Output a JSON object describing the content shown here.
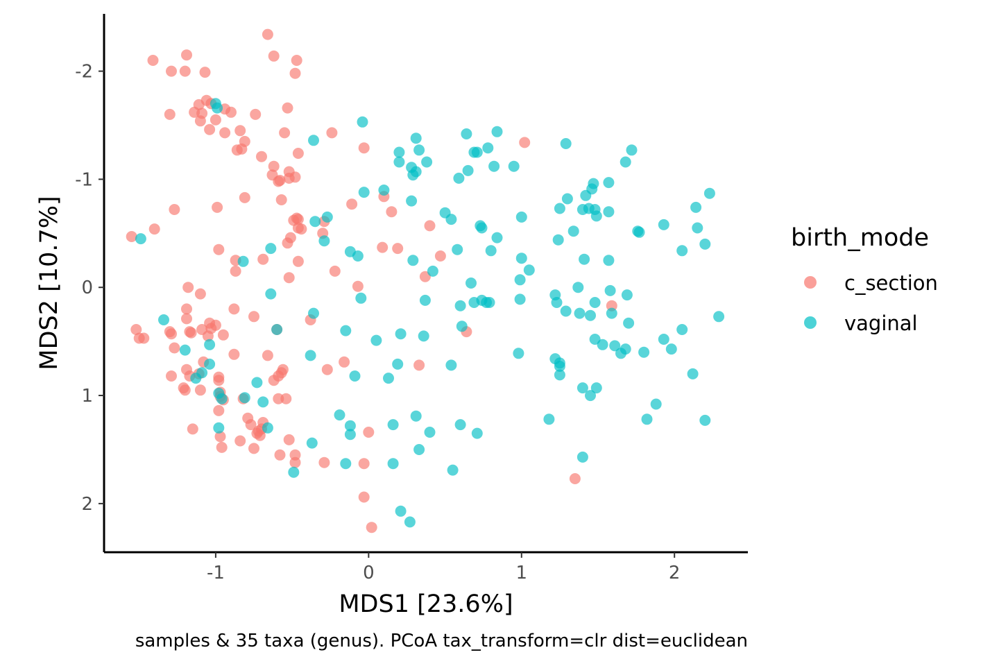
{
  "chart_data": {
    "type": "scatter",
    "xlabel": "MDS1 [23.6%]",
    "ylabel": "MDS2 [10.7%]",
    "caption": "samples & 35 taxa (genus). PCoA tax_transform=clr dist=euclidean",
    "xlim": [
      -1.73,
      2.48
    ],
    "ylim": [
      -2.53,
      2.45
    ],
    "y_reversed": true,
    "x_ticks": [
      {
        "value": -1,
        "label": "-1"
      },
      {
        "value": 0,
        "label": "0"
      },
      {
        "value": 1,
        "label": "1"
      },
      {
        "value": 2,
        "label": "2"
      }
    ],
    "y_ticks": [
      {
        "value": -2,
        "label": "-2"
      },
      {
        "value": -1,
        "label": "-1"
      },
      {
        "value": 0,
        "label": "0"
      },
      {
        "value": 1,
        "label": "1"
      },
      {
        "value": 2,
        "label": "2"
      }
    ],
    "grid": false,
    "legend": {
      "title": "birth_mode",
      "position": "right"
    },
    "series": [
      {
        "name": "c_section",
        "color": "#F8766D",
        "points": [
          [
            -0.66,
            -2.34
          ],
          [
            -1.19,
            -2.15
          ],
          [
            -0.62,
            -2.14
          ],
          [
            -0.47,
            -2.1
          ],
          [
            -1.41,
            -2.1
          ],
          [
            -1.29,
            -2.0
          ],
          [
            -1.2,
            -2.0
          ],
          [
            -1.07,
            -1.99
          ],
          [
            -0.48,
            -1.98
          ],
          [
            -1.06,
            -1.73
          ],
          [
            -1.03,
            -1.7
          ],
          [
            -1.11,
            -1.69
          ],
          [
            -0.94,
            -1.65
          ],
          [
            -0.53,
            -1.66
          ],
          [
            -0.9,
            -1.62
          ],
          [
            -1.14,
            -1.62
          ],
          [
            -1.09,
            -1.61
          ],
          [
            -1.3,
            -1.6
          ],
          [
            -0.74,
            -1.6
          ],
          [
            -1.1,
            -1.54
          ],
          [
            -1.0,
            -1.55
          ],
          [
            -1.04,
            -1.46
          ],
          [
            -0.84,
            -1.45
          ],
          [
            -0.94,
            -1.43
          ],
          [
            -0.55,
            -1.43
          ],
          [
            -0.24,
            -1.43
          ],
          [
            -0.81,
            -1.35
          ],
          [
            -0.83,
            -1.28
          ],
          [
            -0.86,
            -1.27
          ],
          [
            -0.46,
            -1.24
          ],
          [
            -0.7,
            -1.21
          ],
          [
            -0.62,
            -1.12
          ],
          [
            -0.52,
            -1.07
          ],
          [
            -0.63,
            -1.04
          ],
          [
            -0.48,
            -1.02
          ],
          [
            -0.52,
            -1.01
          ],
          [
            -0.58,
            -0.99
          ],
          [
            -0.59,
            -0.98
          ],
          [
            -0.03,
            -1.29
          ],
          [
            1.02,
            -1.34
          ],
          [
            -0.57,
            -0.81
          ],
          [
            -0.81,
            -0.83
          ],
          [
            -1.27,
            -0.72
          ],
          [
            -0.99,
            -0.74
          ],
          [
            -0.11,
            -0.77
          ],
          [
            0.1,
            -0.84
          ],
          [
            0.15,
            -0.7
          ],
          [
            -0.47,
            -0.64
          ],
          [
            -0.46,
            -0.63
          ],
          [
            -0.49,
            -0.62
          ],
          [
            -0.46,
            -0.55
          ],
          [
            -0.44,
            -0.54
          ],
          [
            -0.51,
            -0.46
          ],
          [
            -1.4,
            -0.54
          ],
          [
            -1.55,
            -0.47
          ],
          [
            -0.3,
            -0.5
          ],
          [
            -0.29,
            -0.61
          ],
          [
            -0.53,
            -0.41
          ],
          [
            -0.98,
            -0.35
          ],
          [
            0.09,
            -0.37
          ],
          [
            0.19,
            -0.36
          ],
          [
            0.4,
            -0.57
          ],
          [
            0.47,
            -0.29
          ],
          [
            -0.69,
            -0.26
          ],
          [
            -0.87,
            -0.25
          ],
          [
            -0.46,
            -0.24
          ],
          [
            -0.87,
            -0.15
          ],
          [
            -0.22,
            -0.15
          ],
          [
            0.37,
            -0.1
          ],
          [
            -0.52,
            -0.09
          ],
          [
            -0.07,
            -0.01
          ],
          [
            -1.18,
            0.0
          ],
          [
            -1.1,
            0.06
          ],
          [
            -1.19,
            0.2
          ],
          [
            -0.88,
            0.2
          ],
          [
            -0.75,
            0.27
          ],
          [
            -0.38,
            0.3
          ],
          [
            -1.19,
            0.29
          ],
          [
            -1.04,
            0.33
          ],
          [
            -1.0,
            0.35
          ],
          [
            -1.09,
            0.39
          ],
          [
            -1.03,
            0.38
          ],
          [
            -0.6,
            0.39
          ],
          [
            -1.16,
            0.42
          ],
          [
            -1.52,
            0.39
          ],
          [
            -1.3,
            0.41
          ],
          [
            -1.29,
            0.43
          ],
          [
            -1.47,
            0.47
          ],
          [
            -1.5,
            0.47
          ],
          [
            -1.05,
            0.45
          ],
          [
            -0.95,
            0.44
          ],
          [
            -1.17,
            0.41
          ],
          [
            -0.88,
            0.62
          ],
          [
            -0.66,
            0.63
          ],
          [
            -1.27,
            0.56
          ],
          [
            -1.08,
            0.69
          ],
          [
            -1.19,
            0.76
          ],
          [
            -1.11,
            0.8
          ],
          [
            -1.17,
            0.82
          ],
          [
            -0.27,
            0.76
          ],
          [
            -1.29,
            0.82
          ],
          [
            -0.98,
            0.83
          ],
          [
            -0.98,
            0.86
          ],
          [
            -0.56,
            0.76
          ],
          [
            -0.57,
            0.79
          ],
          [
            -0.59,
            0.82
          ],
          [
            -0.62,
            0.86
          ],
          [
            -0.16,
            0.69
          ],
          [
            0.33,
            0.72
          ],
          [
            0.64,
            0.41
          ],
          [
            1.59,
            0.17
          ],
          [
            -1.21,
            0.93
          ],
          [
            -1.2,
            0.95
          ],
          [
            -1.1,
            0.95
          ],
          [
            -0.97,
            0.97
          ],
          [
            -0.97,
            1.01
          ],
          [
            -0.59,
            1.03
          ],
          [
            -0.95,
            1.04
          ],
          [
            -0.54,
            1.03
          ],
          [
            -0.82,
            1.03
          ],
          [
            -0.98,
            1.14
          ],
          [
            -0.79,
            1.21
          ],
          [
            -0.69,
            1.25
          ],
          [
            -0.77,
            1.27
          ],
          [
            -0.7,
            1.31
          ],
          [
            -0.72,
            1.33
          ],
          [
            -0.73,
            1.35
          ],
          [
            -0.71,
            1.37
          ],
          [
            -1.15,
            1.31
          ],
          [
            -0.97,
            1.38
          ],
          [
            -0.84,
            1.42
          ],
          [
            -0.75,
            1.49
          ],
          [
            -0.96,
            1.48
          ],
          [
            0.0,
            1.34
          ],
          [
            -0.52,
            1.41
          ],
          [
            -0.58,
            1.55
          ],
          [
            -0.48,
            1.55
          ],
          [
            -0.48,
            1.62
          ],
          [
            -0.29,
            1.62
          ],
          [
            -0.03,
            1.63
          ],
          [
            -0.03,
            1.94
          ],
          [
            0.02,
            2.22
          ],
          [
            1.35,
            1.77
          ]
        ]
      },
      {
        "name": "vaginal",
        "color": "#00BFC4",
        "points": [
          [
            -1.0,
            -1.7
          ],
          [
            -0.99,
            -1.66
          ],
          [
            -0.04,
            -1.53
          ],
          [
            0.31,
            -1.38
          ],
          [
            0.64,
            -1.42
          ],
          [
            0.84,
            -1.44
          ],
          [
            -0.36,
            -1.36
          ],
          [
            -0.03,
            -0.88
          ],
          [
            0.1,
            -0.9
          ],
          [
            0.2,
            -1.25
          ],
          [
            0.33,
            -1.27
          ],
          [
            0.69,
            -1.25
          ],
          [
            0.71,
            -1.25
          ],
          [
            0.78,
            -1.29
          ],
          [
            1.29,
            -1.33
          ],
          [
            1.72,
            -1.27
          ],
          [
            0.2,
            -1.16
          ],
          [
            0.28,
            -1.11
          ],
          [
            0.38,
            -1.16
          ],
          [
            0.31,
            -1.07
          ],
          [
            0.29,
            -1.04
          ],
          [
            0.59,
            -1.01
          ],
          [
            0.65,
            -1.08
          ],
          [
            0.82,
            -1.12
          ],
          [
            0.95,
            -1.12
          ],
          [
            1.68,
            -1.16
          ],
          [
            1.47,
            -0.96
          ],
          [
            1.57,
            -0.97
          ],
          [
            1.46,
            -0.91
          ],
          [
            1.42,
            -0.85
          ],
          [
            1.3,
            -0.82
          ],
          [
            2.23,
            -0.87
          ],
          [
            0.28,
            -0.8
          ],
          [
            0.5,
            -0.69
          ],
          [
            0.54,
            -0.63
          ],
          [
            -0.27,
            -0.65
          ],
          [
            -0.35,
            -0.61
          ],
          [
            -0.29,
            -0.43
          ],
          [
            0.73,
            -0.57
          ],
          [
            0.74,
            -0.55
          ],
          [
            0.84,
            -0.46
          ],
          [
            1.0,
            -0.65
          ],
          [
            1.25,
            -0.73
          ],
          [
            1.4,
            -0.72
          ],
          [
            1.44,
            -0.73
          ],
          [
            1.48,
            -0.72
          ],
          [
            1.49,
            -0.66
          ],
          [
            1.57,
            -0.7
          ],
          [
            1.34,
            -0.52
          ],
          [
            1.24,
            -0.44
          ],
          [
            1.76,
            -0.52
          ],
          [
            1.77,
            -0.51
          ],
          [
            1.93,
            -0.58
          ],
          [
            2.14,
            -0.74
          ],
          [
            2.15,
            -0.55
          ],
          [
            2.05,
            -0.34
          ],
          [
            2.2,
            -0.4
          ],
          [
            -1.49,
            -0.45
          ],
          [
            -0.64,
            -0.36
          ],
          [
            -0.82,
            -0.24
          ],
          [
            -0.12,
            -0.33
          ],
          [
            -0.07,
            -0.29
          ],
          [
            0.29,
            -0.25
          ],
          [
            0.58,
            -0.35
          ],
          [
            0.8,
            -0.34
          ],
          [
            1.0,
            -0.27
          ],
          [
            1.05,
            -0.16
          ],
          [
            1.41,
            -0.26
          ],
          [
            1.57,
            -0.25
          ],
          [
            0.42,
            -0.15
          ],
          [
            0.67,
            -0.04
          ],
          [
            0.99,
            -0.07
          ],
          [
            1.22,
            0.07
          ],
          [
            1.37,
            0.0
          ],
          [
            1.58,
            0.03
          ],
          [
            1.69,
            0.07
          ],
          [
            -0.64,
            0.06
          ],
          [
            -0.05,
            0.1
          ],
          [
            0.37,
            0.12
          ],
          [
            0.6,
            0.17
          ],
          [
            0.69,
            0.14
          ],
          [
            0.74,
            0.12
          ],
          [
            0.77,
            0.14
          ],
          [
            0.79,
            0.14
          ],
          [
            0.99,
            0.11
          ],
          [
            1.23,
            0.14
          ],
          [
            1.29,
            0.22
          ],
          [
            1.38,
            0.24
          ],
          [
            1.45,
            0.26
          ],
          [
            1.48,
            0.14
          ],
          [
            1.59,
            0.24
          ],
          [
            1.7,
            0.33
          ],
          [
            -0.36,
            0.24
          ],
          [
            -1.34,
            0.3
          ],
          [
            -0.6,
            0.39
          ],
          [
            -0.15,
            0.4
          ],
          [
            0.05,
            0.49
          ],
          [
            0.21,
            0.43
          ],
          [
            0.36,
            0.45
          ],
          [
            0.61,
            0.36
          ],
          [
            1.48,
            0.48
          ],
          [
            1.53,
            0.53
          ],
          [
            1.61,
            0.54
          ],
          [
            1.65,
            0.61
          ],
          [
            1.68,
            0.57
          ],
          [
            1.8,
            0.6
          ],
          [
            1.93,
            0.48
          ],
          [
            1.98,
            0.57
          ],
          [
            2.05,
            0.39
          ],
          [
            2.29,
            0.27
          ],
          [
            -1.04,
            0.53
          ],
          [
            -1.04,
            0.71
          ],
          [
            -1.2,
            0.58
          ],
          [
            -1.13,
            0.84
          ],
          [
            -1.09,
            0.79
          ],
          [
            -0.38,
            0.63
          ],
          [
            0.19,
            0.71
          ],
          [
            0.54,
            0.72
          ],
          [
            0.98,
            0.61
          ],
          [
            1.22,
            0.66
          ],
          [
            1.25,
            0.7
          ],
          [
            1.25,
            0.73
          ],
          [
            1.25,
            0.81
          ],
          [
            -0.09,
            0.82
          ],
          [
            0.13,
            0.84
          ],
          [
            -0.73,
            0.88
          ],
          [
            -0.98,
            0.98
          ],
          [
            -0.96,
            1.03
          ],
          [
            -0.81,
            1.02
          ],
          [
            -0.69,
            1.06
          ],
          [
            1.4,
            0.93
          ],
          [
            1.49,
            0.93
          ],
          [
            1.45,
            1.0
          ],
          [
            1.88,
            1.08
          ],
          [
            1.82,
            1.22
          ],
          [
            2.12,
            0.8
          ],
          [
            2.2,
            1.23
          ],
          [
            -0.19,
            1.18
          ],
          [
            -0.12,
            1.28
          ],
          [
            -0.12,
            1.36
          ],
          [
            0.16,
            1.27
          ],
          [
            0.31,
            1.19
          ],
          [
            0.4,
            1.34
          ],
          [
            0.6,
            1.27
          ],
          [
            0.71,
            1.35
          ],
          [
            1.18,
            1.22
          ],
          [
            -0.98,
            1.3
          ],
          [
            -0.66,
            1.3
          ],
          [
            -0.37,
            1.44
          ],
          [
            0.33,
            1.5
          ],
          [
            0.55,
            1.69
          ],
          [
            1.4,
            1.57
          ],
          [
            -0.15,
            1.63
          ],
          [
            0.16,
            1.63
          ],
          [
            -0.49,
            1.71
          ],
          [
            0.21,
            2.07
          ],
          [
            0.27,
            2.17
          ]
        ]
      }
    ]
  }
}
